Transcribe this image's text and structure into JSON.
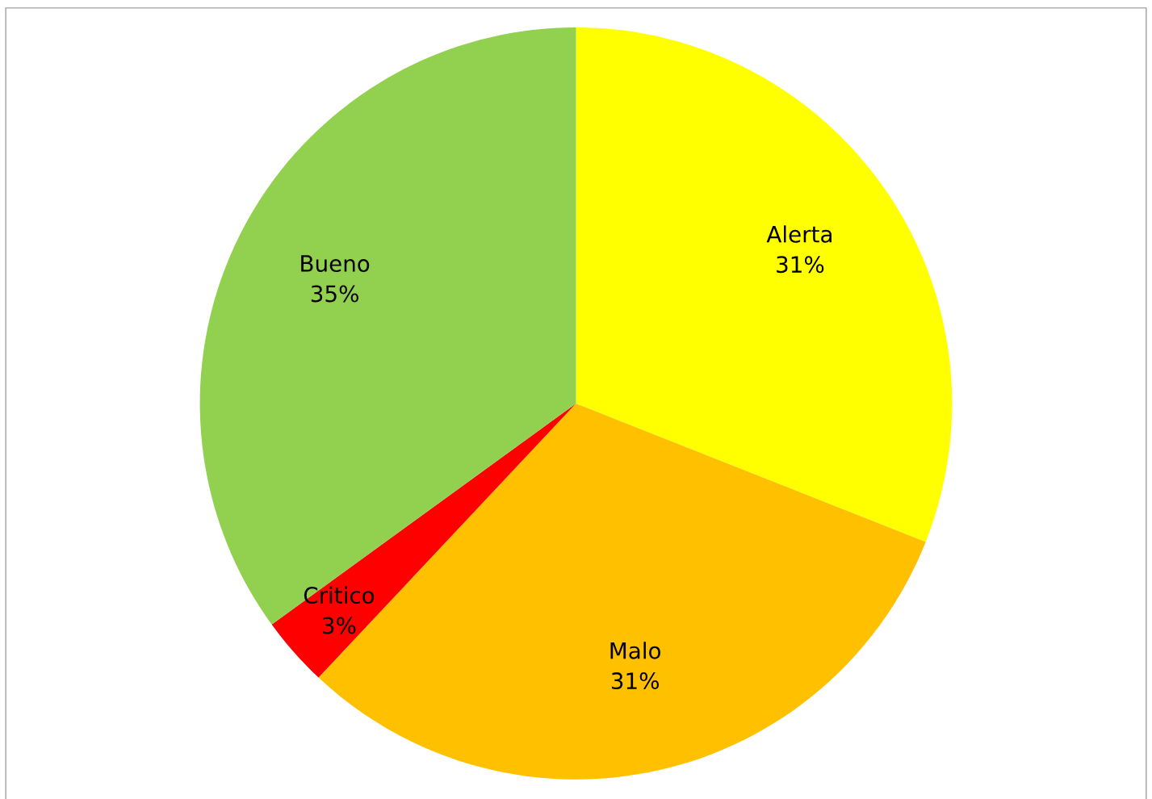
{
  "chart_data": {
    "type": "pie",
    "categories": [
      "Alerta",
      "Malo",
      "Critico",
      "Bueno"
    ],
    "values": [
      31,
      31,
      3,
      35
    ],
    "colors": [
      "#ffff00",
      "#ffc000",
      "#ff0000",
      "#92d050"
    ],
    "value_labels": [
      "31%",
      "31%",
      "3%",
      "35%"
    ],
    "legend": false
  }
}
